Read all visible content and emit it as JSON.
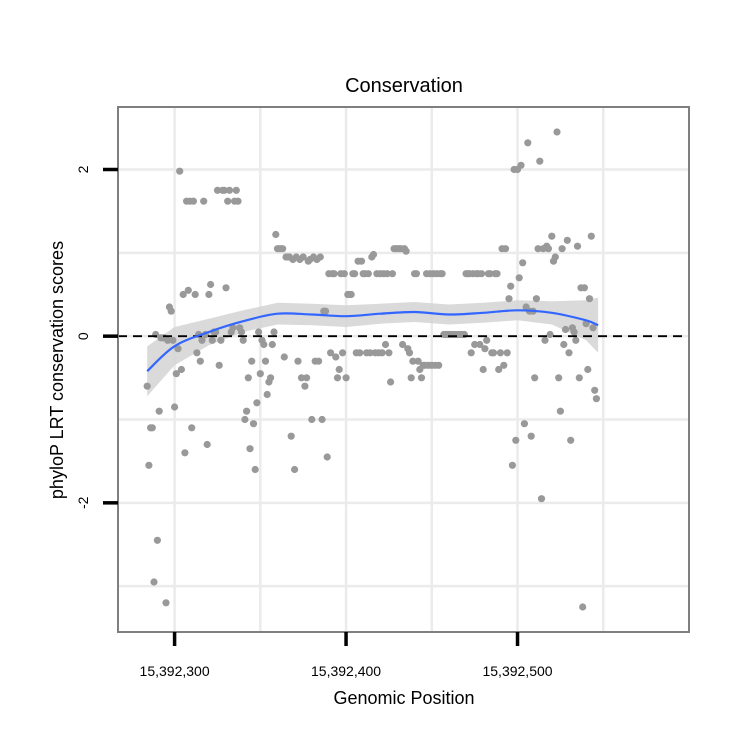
{
  "chart_data": {
    "type": "scatter",
    "title": "Conservation",
    "xlabel": "Genomic Position",
    "ylabel": "phyloP LRT conservation scores",
    "xlim": [
      15392267,
      15392600
    ],
    "ylim": [
      -3.55,
      2.75
    ],
    "x_ticks": [
      {
        "value": 15392300,
        "label": "15,392,300"
      },
      {
        "value": 15392400,
        "label": "15,392,400"
      },
      {
        "value": 15392500,
        "label": "15,392,500"
      }
    ],
    "y_ticks": [
      {
        "value": -2,
        "label": "-2"
      },
      {
        "value": 0,
        "label": "0"
      },
      {
        "value": 2,
        "label": "2"
      }
    ],
    "x_minor_gridlines": [
      15392350,
      15392450,
      15392550
    ],
    "y_minor_gridlines": [
      -3,
      -1,
      1
    ],
    "grid": true,
    "reference_line": {
      "y": 0,
      "style": "dashed",
      "color": "#000000"
    },
    "colors": {
      "points": "#999999",
      "smooth": "#3366ff",
      "ribbon": "#d3d3d3",
      "grid": "#ebebeb",
      "border": "#7f7f7f"
    },
    "points": [
      [
        15392284,
        -0.6
      ],
      [
        15392285,
        -1.55
      ],
      [
        15392286,
        -1.1
      ],
      [
        15392287,
        -1.1
      ],
      [
        15392288,
        -2.95
      ],
      [
        15392289,
        0.02
      ],
      [
        15392290,
        -2.45
      ],
      [
        15392291,
        -0.9
      ],
      [
        15392292,
        -0.02
      ],
      [
        15392293,
        -0.02
      ],
      [
        15392294,
        -0.02
      ],
      [
        15392295,
        -3.2
      ],
      [
        15392296,
        -0.05
      ],
      [
        15392297,
        0.35
      ],
      [
        15392298,
        0.3
      ],
      [
        15392299,
        -0.05
      ],
      [
        15392300,
        -0.85
      ],
      [
        15392301,
        -0.45
      ],
      [
        15392302,
        -0.15
      ],
      [
        15392303,
        1.98
      ],
      [
        15392304,
        -0.4
      ],
      [
        15392305,
        0.5
      ],
      [
        15392306,
        -1.4
      ],
      [
        15392307,
        1.62
      ],
      [
        15392308,
        0.55
      ],
      [
        15392309,
        1.62
      ],
      [
        15392310,
        -1.1
      ],
      [
        15392311,
        1.62
      ],
      [
        15392312,
        0.5
      ],
      [
        15392313,
        -0.2
      ],
      [
        15392314,
        0.02
      ],
      [
        15392315,
        -0.3
      ],
      [
        15392316,
        -0.05
      ],
      [
        15392317,
        1.62
      ],
      [
        15392318,
        0.02
      ],
      [
        15392319,
        -1.3
      ],
      [
        15392320,
        0.5
      ],
      [
        15392321,
        0.62
      ],
      [
        15392322,
        -0.05
      ],
      [
        15392323,
        0.05
      ],
      [
        15392324,
        0.05
      ],
      [
        15392325,
        1.75
      ],
      [
        15392326,
        -0.35
      ],
      [
        15392327,
        -0.05
      ],
      [
        15392328,
        1.75
      ],
      [
        15392329,
        1.75
      ],
      [
        15392330,
        0.58
      ],
      [
        15392331,
        1.62
      ],
      [
        15392332,
        1.75
      ],
      [
        15392333,
        0.05
      ],
      [
        15392334,
        0.1
      ],
      [
        15392335,
        1.62
      ],
      [
        15392336,
        1.75
      ],
      [
        15392337,
        1.62
      ],
      [
        15392338,
        0.1
      ],
      [
        15392339,
        0.05
      ],
      [
        15392340,
        -0.05
      ],
      [
        15392341,
        -1.0
      ],
      [
        15392342,
        -0.9
      ],
      [
        15392343,
        -0.5
      ],
      [
        15392344,
        -1.35
      ],
      [
        15392345,
        -0.3
      ],
      [
        15392346,
        -1.05
      ],
      [
        15392347,
        -1.6
      ],
      [
        15392348,
        -0.8
      ],
      [
        15392349,
        0.05
      ],
      [
        15392350,
        -0.45
      ],
      [
        15392351,
        -0.05
      ],
      [
        15392352,
        -0.1
      ],
      [
        15392353,
        -0.3
      ],
      [
        15392354,
        -0.7
      ],
      [
        15392355,
        -0.55
      ],
      [
        15392356,
        -0.5
      ],
      [
        15392357,
        -0.1
      ],
      [
        15392358,
        0.05
      ],
      [
        15392359,
        1.22
      ],
      [
        15392360,
        1.05
      ],
      [
        15392361,
        1.05
      ],
      [
        15392362,
        1.05
      ],
      [
        15392363,
        1.05
      ],
      [
        15392364,
        -0.25
      ],
      [
        15392365,
        0.95
      ],
      [
        15392366,
        0.95
      ],
      [
        15392367,
        0.95
      ],
      [
        15392368,
        -1.2
      ],
      [
        15392369,
        0.92
      ],
      [
        15392370,
        -1.6
      ],
      [
        15392371,
        0.95
      ],
      [
        15392372,
        -0.3
      ],
      [
        15392373,
        0.92
      ],
      [
        15392374,
        -0.5
      ],
      [
        15392375,
        0.95
      ],
      [
        15392376,
        -0.6
      ],
      [
        15392377,
        -0.5
      ],
      [
        15392378,
        0.9
      ],
      [
        15392379,
        0.92
      ],
      [
        15392380,
        -1.0
      ],
      [
        15392381,
        0.95
      ],
      [
        15392382,
        -0.3
      ],
      [
        15392383,
        0.92
      ],
      [
        15392384,
        -0.3
      ],
      [
        15392385,
        0.95
      ],
      [
        15392386,
        -1.0
      ],
      [
        15392387,
        0.3
      ],
      [
        15392388,
        0.3
      ],
      [
        15392389,
        -1.45
      ],
      [
        15392390,
        0.75
      ],
      [
        15392391,
        -0.2
      ],
      [
        15392392,
        0.75
      ],
      [
        15392393,
        0.75
      ],
      [
        15392394,
        -0.25
      ],
      [
        15392395,
        -0.5
      ],
      [
        15392396,
        -0.4
      ],
      [
        15392397,
        0.75
      ],
      [
        15392398,
        -0.2
      ],
      [
        15392399,
        0.75
      ],
      [
        15392400,
        -0.5
      ],
      [
        15392401,
        0.5
      ],
      [
        15392402,
        0.5
      ],
      [
        15392403,
        0.5
      ],
      [
        15392404,
        0.75
      ],
      [
        15392405,
        0.75
      ],
      [
        15392406,
        -0.2
      ],
      [
        15392407,
        0.9
      ],
      [
        15392408,
        -0.2
      ],
      [
        15392409,
        0.9
      ],
      [
        15392410,
        0.75
      ],
      [
        15392411,
        0.75
      ],
      [
        15392412,
        -0.2
      ],
      [
        15392413,
        0.75
      ],
      [
        15392414,
        -0.2
      ],
      [
        15392415,
        0.95
      ],
      [
        15392416,
        0.98
      ],
      [
        15392417,
        -0.2
      ],
      [
        15392418,
        0.75
      ],
      [
        15392419,
        -0.2
      ],
      [
        15392420,
        0.75
      ],
      [
        15392421,
        -0.2
      ],
      [
        15392422,
        0.75
      ],
      [
        15392423,
        -0.1
      ],
      [
        15392424,
        0.75
      ],
      [
        15392425,
        -0.2
      ],
      [
        15392426,
        -0.55
      ],
      [
        15392427,
        0.75
      ],
      [
        15392428,
        1.05
      ],
      [
        15392429,
        1.05
      ],
      [
        15392430,
        1.05
      ],
      [
        15392431,
        1.05
      ],
      [
        15392432,
        1.05
      ],
      [
        15392433,
        -0.1
      ],
      [
        15392434,
        1.05
      ],
      [
        15392435,
        1.02
      ],
      [
        15392436,
        -0.15
      ],
      [
        15392437,
        -0.2
      ],
      [
        15392438,
        -0.5
      ],
      [
        15392439,
        -0.3
      ],
      [
        15392440,
        0.75
      ],
      [
        15392441,
        0.75
      ],
      [
        15392442,
        -0.3
      ],
      [
        15392443,
        -0.4
      ],
      [
        15392444,
        -0.5
      ],
      [
        15392445,
        -0.35
      ],
      [
        15392446,
        -0.35
      ],
      [
        15392447,
        0.75
      ],
      [
        15392448,
        -0.35
      ],
      [
        15392449,
        0.75
      ],
      [
        15392450,
        -0.35
      ],
      [
        15392451,
        0.75
      ],
      [
        15392452,
        -0.35
      ],
      [
        15392453,
        0.75
      ],
      [
        15392454,
        -0.35
      ],
      [
        15392455,
        0.75
      ],
      [
        15392456,
        0.75
      ],
      [
        15392457,
        0.02
      ],
      [
        15392458,
        0.02
      ],
      [
        15392459,
        0.02
      ],
      [
        15392460,
        0.02
      ],
      [
        15392461,
        0.02
      ],
      [
        15392462,
        0.02
      ],
      [
        15392463,
        0.02
      ],
      [
        15392464,
        0.02
      ],
      [
        15392465,
        0.02
      ],
      [
        15392466,
        0.02
      ],
      [
        15392467,
        0.02
      ],
      [
        15392468,
        0.02
      ],
      [
        15392469,
        0.02
      ],
      [
        15392470,
        0.75
      ],
      [
        15392471,
        0.75
      ],
      [
        15392472,
        0.75
      ],
      [
        15392473,
        -0.2
      ],
      [
        15392474,
        0.75
      ],
      [
        15392475,
        -0.1
      ],
      [
        15392476,
        0.75
      ],
      [
        15392477,
        0.75
      ],
      [
        15392478,
        -0.1
      ],
      [
        15392479,
        0.75
      ],
      [
        15392480,
        -0.4
      ],
      [
        15392481,
        -0.15
      ],
      [
        15392482,
        -0.05
      ],
      [
        15392483,
        0.75
      ],
      [
        15392484,
        0.75
      ],
      [
        15392485,
        -0.2
      ],
      [
        15392486,
        -0.2
      ],
      [
        15392487,
        0.75
      ],
      [
        15392488,
        0.75
      ],
      [
        15392489,
        -0.4
      ],
      [
        15392490,
        -0.2
      ],
      [
        15392491,
        1.05
      ],
      [
        15392492,
        -0.35
      ],
      [
        15392493,
        1.05
      ],
      [
        15392494,
        -0.2
      ],
      [
        15392495,
        0.45
      ],
      [
        15392496,
        0.6
      ],
      [
        15392497,
        -1.55
      ],
      [
        15392498,
        2.0
      ],
      [
        15392499,
        -1.25
      ],
      [
        15392500,
        2.0
      ],
      [
        15392501,
        0.7
      ],
      [
        15392502,
        2.05
      ],
      [
        15392503,
        0.88
      ],
      [
        15392504,
        -1.05
      ],
      [
        15392505,
        0.35
      ],
      [
        15392506,
        2.32
      ],
      [
        15392507,
        0.3
      ],
      [
        15392508,
        -1.2
      ],
      [
        15392509,
        0.3
      ],
      [
        15392510,
        -0.5
      ],
      [
        15392511,
        0.45
      ],
      [
        15392512,
        1.05
      ],
      [
        15392513,
        2.1
      ],
      [
        15392514,
        -1.95
      ],
      [
        15392515,
        1.05
      ],
      [
        15392516,
        -0.05
      ],
      [
        15392517,
        1.08
      ],
      [
        15392518,
        1.05
      ],
      [
        15392519,
        0.02
      ],
      [
        15392520,
        1.2
      ],
      [
        15392521,
        0.9
      ],
      [
        15392522,
        0.95
      ],
      [
        15392523,
        2.45
      ],
      [
        15392524,
        -0.5
      ],
      [
        15392525,
        -0.9
      ],
      [
        15392526,
        1.05
      ],
      [
        15392527,
        -0.1
      ],
      [
        15392528,
        0.08
      ],
      [
        15392529,
        1.15
      ],
      [
        15392530,
        -0.2
      ],
      [
        15392531,
        -1.25
      ],
      [
        15392532,
        0.1
      ],
      [
        15392533,
        0.05
      ],
      [
        15392534,
        -0.05
      ],
      [
        15392535,
        1.08
      ],
      [
        15392536,
        -0.5
      ],
      [
        15392537,
        0.58
      ],
      [
        15392538,
        -3.25
      ],
      [
        15392539,
        0.58
      ],
      [
        15392540,
        0.15
      ],
      [
        15392541,
        -0.4
      ],
      [
        15392542,
        0.45
      ],
      [
        15392543,
        1.2
      ],
      [
        15392544,
        0.1
      ],
      [
        15392545,
        -0.65
      ],
      [
        15392546,
        -0.75
      ]
    ],
    "smooth": {
      "x": [
        15392284,
        15392300,
        15392320,
        15392340,
        15392360,
        15392380,
        15392400,
        15392420,
        15392440,
        15392460,
        15392480,
        15392500,
        15392520,
        15392540,
        15392547
      ],
      "y": [
        -0.42,
        -0.12,
        0.05,
        0.18,
        0.27,
        0.26,
        0.24,
        0.27,
        0.29,
        0.26,
        0.28,
        0.31,
        0.28,
        0.19,
        0.13
      ],
      "lower": [
        -0.72,
        -0.35,
        -0.11,
        0.05,
        0.14,
        0.13,
        0.11,
        0.15,
        0.17,
        0.14,
        0.16,
        0.19,
        0.14,
        -0.05,
        -0.2
      ],
      "upper": [
        -0.12,
        0.11,
        0.21,
        0.31,
        0.4,
        0.39,
        0.37,
        0.39,
        0.41,
        0.38,
        0.4,
        0.43,
        0.42,
        0.43,
        0.46
      ]
    }
  }
}
